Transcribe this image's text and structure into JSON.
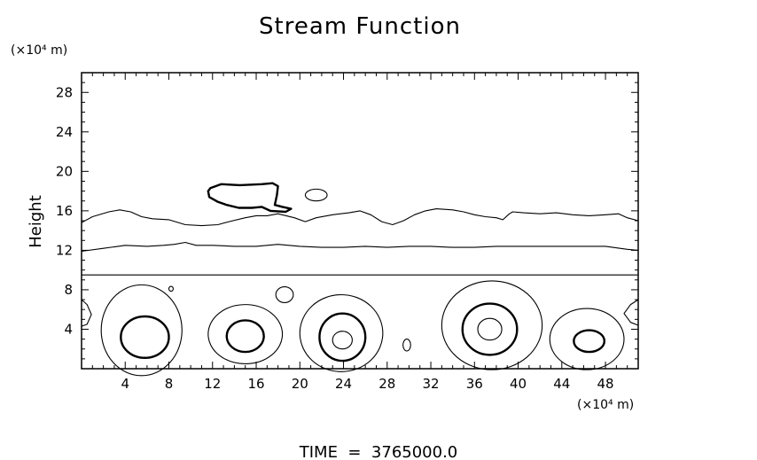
{
  "chart_data": {
    "type": "contour",
    "title": "Stream Function",
    "ylabel": "Height",
    "x_unit": "(×10⁴ m)",
    "y_unit": "(×10⁴ m)",
    "xlim": [
      0,
      51
    ],
    "ylim": [
      0,
      30
    ],
    "x_ticks": [
      4,
      8,
      12,
      16,
      20,
      24,
      28,
      32,
      36,
      40,
      44,
      48
    ],
    "y_ticks": [
      4,
      8,
      12,
      16,
      20,
      24,
      28
    ],
    "footer": "TIME  =  3765000.0",
    "line_color": "#000000",
    "contours": [
      {
        "kind": "level",
        "weight": "thin",
        "points": [
          [
            0,
            14.8
          ],
          [
            1,
            15.4
          ],
          [
            2.5,
            15.9
          ],
          [
            3.5,
            16.1
          ],
          [
            4.5,
            15.9
          ],
          [
            5.5,
            15.4
          ],
          [
            6.5,
            15.2
          ],
          [
            8,
            15.1
          ],
          [
            9.5,
            14.6
          ],
          [
            11,
            14.5
          ],
          [
            12.5,
            14.6
          ],
          [
            13.5,
            14.9
          ],
          [
            15,
            15.3
          ],
          [
            16,
            15.5
          ],
          [
            17,
            15.5
          ],
          [
            18,
            15.7
          ],
          [
            19.5,
            15.3
          ],
          [
            20.5,
            14.9
          ],
          [
            21.5,
            15.3
          ],
          [
            23,
            15.6
          ],
          [
            24.5,
            15.8
          ],
          [
            25.5,
            16.0
          ],
          [
            26.5,
            15.6
          ],
          [
            27.5,
            14.9
          ],
          [
            28.5,
            14.6
          ],
          [
            29.5,
            15.0
          ],
          [
            30.5,
            15.6
          ],
          [
            31.5,
            16.0
          ],
          [
            32.5,
            16.2
          ],
          [
            34,
            16.1
          ],
          [
            35,
            15.9
          ],
          [
            36,
            15.6
          ],
          [
            37,
            15.4
          ],
          [
            38,
            15.3
          ],
          [
            38.6,
            15.1
          ],
          [
            39.2,
            15.7
          ],
          [
            39.5,
            15.9
          ],
          [
            40.5,
            15.8
          ],
          [
            42,
            15.7
          ],
          [
            43.5,
            15.8
          ],
          [
            45,
            15.6
          ],
          [
            46.5,
            15.5
          ],
          [
            48,
            15.6
          ],
          [
            49.2,
            15.7
          ],
          [
            50,
            15.3
          ],
          [
            51,
            15.0
          ]
        ]
      },
      {
        "kind": "level",
        "weight": "thin",
        "points": [
          [
            0,
            11.9
          ],
          [
            2,
            12.2
          ],
          [
            4,
            12.5
          ],
          [
            6,
            12.4
          ],
          [
            7.5,
            12.5
          ],
          [
            8.5,
            12.6
          ],
          [
            9.5,
            12.8
          ],
          [
            10.5,
            12.5
          ],
          [
            12,
            12.5
          ],
          [
            14,
            12.4
          ],
          [
            16,
            12.4
          ],
          [
            18,
            12.6
          ],
          [
            20,
            12.4
          ],
          [
            22,
            12.3
          ],
          [
            24,
            12.3
          ],
          [
            26,
            12.4
          ],
          [
            28,
            12.3
          ],
          [
            30,
            12.4
          ],
          [
            32,
            12.4
          ],
          [
            34,
            12.3
          ],
          [
            36,
            12.3
          ],
          [
            38,
            12.4
          ],
          [
            40,
            12.4
          ],
          [
            42,
            12.4
          ],
          [
            44,
            12.4
          ],
          [
            46,
            12.4
          ],
          [
            48,
            12.4
          ],
          [
            50,
            12.1
          ],
          [
            51,
            12.0
          ]
        ]
      },
      {
        "kind": "level",
        "weight": "thin",
        "points": [
          [
            0,
            9.5
          ],
          [
            51,
            9.5
          ]
        ]
      },
      {
        "kind": "cell",
        "weight": "thin",
        "cx": 5.5,
        "cy": 3.9,
        "rx": 3.7,
        "ry": 4.6
      },
      {
        "kind": "cell",
        "weight": "thick",
        "cx": 5.8,
        "cy": 3.2,
        "rx": 2.2,
        "ry": 2.1
      },
      {
        "kind": "cell",
        "weight": "thin",
        "cx": 15.0,
        "cy": 3.5,
        "rx": 3.4,
        "ry": 3.0
      },
      {
        "kind": "cell",
        "weight": "thick",
        "cx": 15.0,
        "cy": 3.3,
        "rx": 1.7,
        "ry": 1.6
      },
      {
        "kind": "cell",
        "weight": "thin",
        "cx": 23.8,
        "cy": 3.6,
        "rx": 3.8,
        "ry": 3.9
      },
      {
        "kind": "cell",
        "weight": "thick",
        "cx": 23.9,
        "cy": 3.2,
        "rx": 2.1,
        "ry": 2.4
      },
      {
        "kind": "cell",
        "weight": "thin",
        "cx": 23.9,
        "cy": 2.9,
        "rx": 0.9,
        "ry": 0.9
      },
      {
        "kind": "cell",
        "weight": "thin",
        "cx": 37.6,
        "cy": 4.4,
        "rx": 4.6,
        "ry": 4.5
      },
      {
        "kind": "cell",
        "weight": "thick",
        "cx": 37.4,
        "cy": 4.0,
        "rx": 2.5,
        "ry": 2.6
      },
      {
        "kind": "cell",
        "weight": "thin",
        "cx": 37.4,
        "cy": 4.0,
        "rx": 1.1,
        "ry": 1.1
      },
      {
        "kind": "cell",
        "weight": "thin",
        "cx": 46.3,
        "cy": 3.0,
        "rx": 3.4,
        "ry": 3.1
      },
      {
        "kind": "cell",
        "weight": "thick",
        "cx": 46.5,
        "cy": 2.8,
        "rx": 1.4,
        "ry": 1.1
      },
      {
        "kind": "cell",
        "weight": "thin",
        "cx": 18.6,
        "cy": 7.5,
        "rx": 0.8,
        "ry": 0.8
      },
      {
        "kind": "cell",
        "weight": "thin",
        "cx": 29.8,
        "cy": 2.4,
        "rx": 0.35,
        "ry": 0.6
      },
      {
        "kind": "cell",
        "weight": "thin",
        "cx": 8.2,
        "cy": 8.1,
        "rx": 0.2,
        "ry": 0.25
      },
      {
        "kind": "cell",
        "weight": "thin",
        "cx": 21.5,
        "cy": 17.6,
        "rx": 1.0,
        "ry": 0.6
      },
      {
        "kind": "edge",
        "weight": "thin",
        "points": [
          [
            0,
            7.0
          ],
          [
            0.5,
            6.5
          ],
          [
            0.9,
            5.5
          ],
          [
            0.5,
            4.5
          ],
          [
            0,
            4.3
          ]
        ]
      },
      {
        "kind": "edge",
        "weight": "thin",
        "points": [
          [
            51,
            7.0
          ],
          [
            50.3,
            6.5
          ],
          [
            49.7,
            5.6
          ],
          [
            50.3,
            4.7
          ],
          [
            51,
            4.4
          ]
        ]
      },
      {
        "kind": "blob",
        "weight": "thick",
        "points": [
          [
            11.8,
            18.3
          ],
          [
            12.8,
            18.7
          ],
          [
            14.5,
            18.6
          ],
          [
            16.5,
            18.7
          ],
          [
            17.5,
            18.8
          ],
          [
            18.0,
            18.5
          ],
          [
            17.9,
            17.6
          ],
          [
            17.7,
            16.6
          ],
          [
            18.4,
            16.4
          ],
          [
            19.2,
            16.2
          ],
          [
            18.7,
            15.9
          ],
          [
            17.3,
            16.0
          ],
          [
            16.5,
            16.4
          ],
          [
            15.6,
            16.3
          ],
          [
            14.4,
            16.3
          ],
          [
            13.3,
            16.6
          ],
          [
            12.5,
            16.9
          ],
          [
            11.7,
            17.4
          ],
          [
            11.6,
            18.0
          ],
          [
            11.8,
            18.3
          ]
        ]
      }
    ]
  }
}
